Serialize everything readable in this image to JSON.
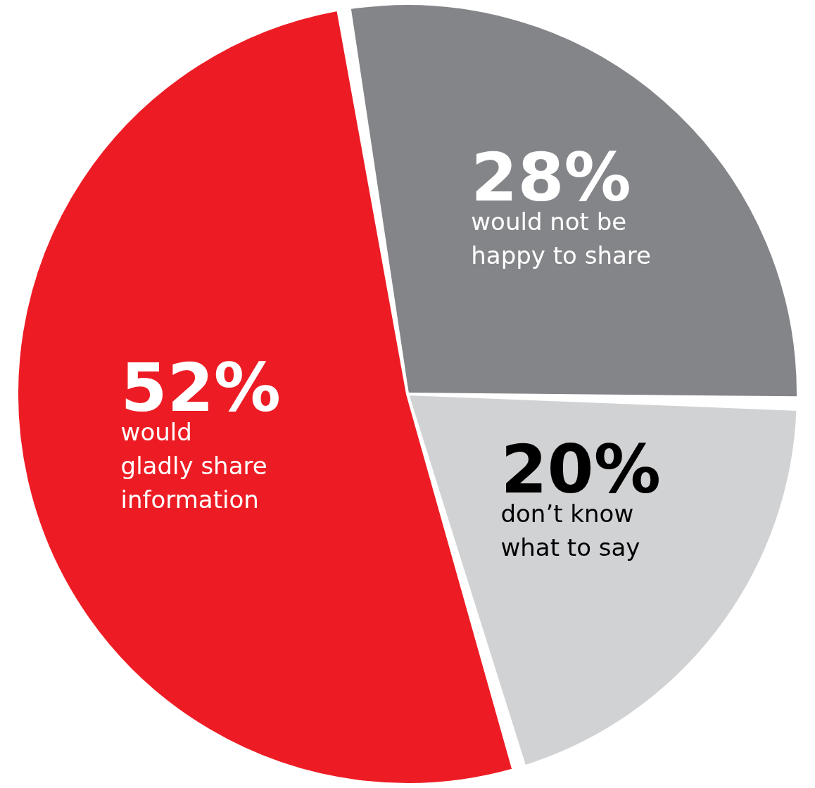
{
  "chart_data": {
    "type": "pie",
    "categories": [
      "would not be\nhappy to share",
      "don’t know\nwhat to say",
      "would\ngladly share\ninformation"
    ],
    "values": [
      28,
      20,
      52
    ],
    "colors": [
      "#848589",
      "#d1d2d4",
      "#ed1c24"
    ],
    "value_labels": [
      "28%",
      "20%",
      "52%"
    ]
  }
}
